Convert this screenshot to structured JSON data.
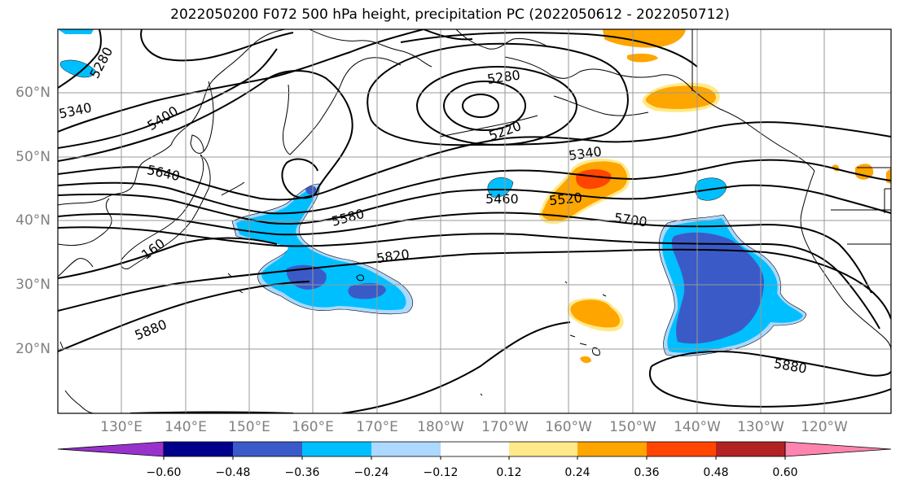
{
  "title": "2022050200 F072 500 hPa height, precipitation PC (2022050612 - 2022050712)",
  "lat_labels": [
    "60°N",
    "50°N",
    "40°N",
    "30°N",
    "20°N"
  ],
  "lon_labels": [
    "130°E",
    "140°E",
    "150°E",
    "160°E",
    "170°E",
    "180°W",
    "170°W",
    "160°W",
    "150°W",
    "140°W",
    "130°W",
    "120°W"
  ],
  "contour_labels": [
    "5280",
    "5400",
    "5340",
    "5640",
    "160",
    "5580",
    "5820",
    "5880",
    "5280",
    "5220",
    "5340",
    "5460",
    "5520",
    "5700",
    "5880"
  ],
  "colorbar": {
    "tick_labels": [
      "−0.60",
      "−0.48",
      "−0.36",
      "−0.24",
      "−0.12",
      "0.12",
      "0.24",
      "0.36",
      "0.48",
      "0.60"
    ],
    "colors": [
      "#9932cc",
      "#00008b",
      "#3a5bc7",
      "#00bfff",
      "#add8ff",
      "#ffffff",
      "#ffe98a",
      "#ffa500",
      "#ff4500",
      "#b22222",
      "#ff85b0"
    ]
  },
  "shading_colors": {
    "neg_light": "#add8ff",
    "neg_mid": "#00bfff",
    "neg_dark": "#3a5bc7",
    "pos_light": "#ffe98a",
    "pos_mid": "#ffa500",
    "pos_dark": "#ff4500"
  }
}
